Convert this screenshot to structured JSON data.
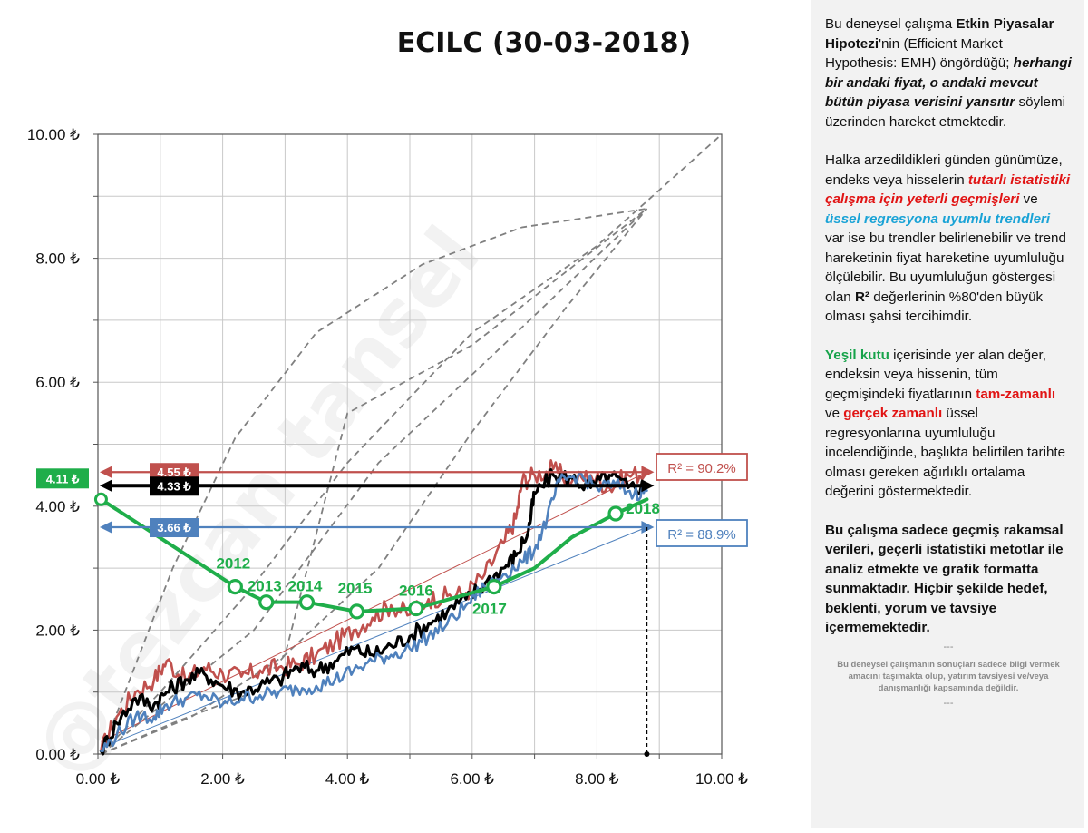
{
  "title": "ECILC (30-03-2018)",
  "chart_data": {
    "type": "line",
    "xlim": [
      0,
      10
    ],
    "ylim": [
      0,
      10
    ],
    "x_tick_labels": [
      "0.00 ₺",
      "2.00 ₺",
      "4.00 ₺",
      "6.00 ₺",
      "8.00 ₺",
      "10.00 ₺"
    ],
    "y_tick_labels": [
      "0.00 ₺",
      "2.00 ₺",
      "4.00 ₺",
      "6.00 ₺",
      "8.00 ₺",
      "10.00 ₺"
    ],
    "grid": true,
    "colors": {
      "red": "#c0504d",
      "blue": "#4f81bd",
      "black": "#000000",
      "green": "#1fae4a",
      "dashed": "#808080"
    },
    "series": [
      {
        "color": "red",
        "points": [
          [
            0.05,
            0.05
          ],
          [
            0.3,
            0.6
          ],
          [
            0.6,
            1.0
          ],
          [
            0.9,
            1.2
          ],
          [
            1.1,
            1.5
          ],
          [
            1.4,
            1.2
          ],
          [
            1.7,
            1.4
          ],
          [
            2.0,
            1.3
          ],
          [
            2.3,
            1.25
          ],
          [
            2.6,
            1.35
          ],
          [
            2.9,
            1.4
          ],
          [
            3.2,
            1.45
          ],
          [
            3.5,
            1.6
          ],
          [
            3.8,
            1.8
          ],
          [
            4.1,
            2.0
          ],
          [
            4.4,
            2.2
          ],
          [
            4.7,
            2.4
          ],
          [
            5.0,
            2.25
          ],
          [
            5.3,
            2.5
          ],
          [
            5.6,
            2.55
          ],
          [
            5.9,
            2.6
          ],
          [
            6.2,
            2.9
          ],
          [
            6.5,
            3.4
          ],
          [
            6.7,
            3.8
          ],
          [
            6.8,
            4.4
          ],
          [
            7.0,
            4.5
          ],
          [
            7.3,
            4.6
          ],
          [
            7.6,
            4.4
          ],
          [
            7.9,
            4.5
          ],
          [
            8.2,
            4.3
          ],
          [
            8.5,
            4.5
          ],
          [
            8.8,
            4.55
          ]
        ]
      },
      {
        "color": "black",
        "points": [
          [
            0.05,
            0.05
          ],
          [
            0.3,
            0.5
          ],
          [
            0.6,
            0.9
          ],
          [
            0.9,
            0.8
          ],
          [
            1.1,
            1.0
          ],
          [
            1.4,
            1.2
          ],
          [
            1.7,
            1.3
          ],
          [
            2.0,
            1.1
          ],
          [
            2.3,
            1.0
          ],
          [
            2.6,
            1.1
          ],
          [
            2.9,
            1.2
          ],
          [
            3.2,
            1.4
          ],
          [
            3.5,
            1.35
          ],
          [
            3.8,
            1.5
          ],
          [
            4.1,
            1.7
          ],
          [
            4.4,
            1.6
          ],
          [
            4.7,
            1.75
          ],
          [
            5.0,
            1.9
          ],
          [
            5.3,
            2.1
          ],
          [
            5.6,
            2.3
          ],
          [
            5.9,
            2.5
          ],
          [
            6.2,
            2.75
          ],
          [
            6.5,
            3.0
          ],
          [
            6.7,
            3.2
          ],
          [
            6.9,
            3.6
          ],
          [
            7.0,
            4.2
          ],
          [
            7.3,
            4.5
          ],
          [
            7.6,
            4.45
          ],
          [
            7.9,
            4.3
          ],
          [
            8.2,
            4.5
          ],
          [
            8.5,
            4.3
          ],
          [
            8.8,
            4.33
          ]
        ]
      },
      {
        "color": "blue",
        "points": [
          [
            0.05,
            0.05
          ],
          [
            0.3,
            0.3
          ],
          [
            0.6,
            0.6
          ],
          [
            0.9,
            0.6
          ],
          [
            1.1,
            0.8
          ],
          [
            1.4,
            0.9
          ],
          [
            1.7,
            0.95
          ],
          [
            2.0,
            0.8
          ],
          [
            2.3,
            0.9
          ],
          [
            2.6,
            0.95
          ],
          [
            2.9,
            1.0
          ],
          [
            3.2,
            1.05
          ],
          [
            3.5,
            1.1
          ],
          [
            3.8,
            1.2
          ],
          [
            4.1,
            1.35
          ],
          [
            4.4,
            1.5
          ],
          [
            4.7,
            1.6
          ],
          [
            5.0,
            1.7
          ],
          [
            5.3,
            1.9
          ],
          [
            5.6,
            2.1
          ],
          [
            5.9,
            2.4
          ],
          [
            6.2,
            2.7
          ],
          [
            6.5,
            2.9
          ],
          [
            6.8,
            3.1
          ],
          [
            7.0,
            3.3
          ],
          [
            7.2,
            3.8
          ],
          [
            7.4,
            4.4
          ],
          [
            7.7,
            4.5
          ],
          [
            8.0,
            4.3
          ],
          [
            8.3,
            4.35
          ],
          [
            8.6,
            4.2
          ],
          [
            8.8,
            4.25
          ]
        ]
      },
      {
        "color": "green",
        "points": [
          [
            0.05,
            4.11
          ],
          [
            2.2,
            2.7
          ],
          [
            2.7,
            2.45
          ],
          [
            3.35,
            2.45
          ],
          [
            4.15,
            2.3
          ],
          [
            5.1,
            2.35
          ],
          [
            6.35,
            2.7
          ],
          [
            7.0,
            3.0
          ],
          [
            7.6,
            3.5
          ],
          [
            8.3,
            3.88
          ],
          [
            8.8,
            4.11
          ]
        ]
      }
    ],
    "trend_lines": [
      {
        "color": "red",
        "from": [
          0.05,
          0.2
        ],
        "to": [
          8.8,
          4.55
        ]
      },
      {
        "color": "blue",
        "from": [
          0.05,
          0.1
        ],
        "to": [
          8.8,
          3.66
        ]
      }
    ],
    "dashed_lines": [
      {
        "points": [
          [
            0.05,
            0.0
          ],
          [
            1.2,
            3.0
          ],
          [
            2.2,
            5.1
          ],
          [
            3.5,
            6.8
          ],
          [
            5.2,
            7.9
          ],
          [
            6.8,
            8.5
          ],
          [
            8.8,
            8.8
          ]
        ]
      },
      {
        "points": [
          [
            0.05,
            0.0
          ],
          [
            1.0,
            1.0
          ],
          [
            2.4,
            2.6
          ],
          [
            4.0,
            4.7
          ],
          [
            6.0,
            6.8
          ],
          [
            8.0,
            8.2
          ],
          [
            10.0,
            10.0
          ]
        ]
      },
      {
        "points": [
          [
            0.05,
            0.0
          ],
          [
            2.5,
            2.0
          ],
          [
            4.5,
            4.7
          ],
          [
            6.5,
            6.6
          ],
          [
            8.8,
            8.8
          ]
        ]
      },
      {
        "points": [
          [
            0.05,
            0.0
          ],
          [
            1.5,
            0.6
          ],
          [
            3.0,
            1.6
          ],
          [
            4.5,
            3.0
          ],
          [
            6.0,
            5.2
          ],
          [
            7.5,
            7.2
          ],
          [
            8.8,
            8.8
          ]
        ]
      },
      {
        "points": [
          [
            0.05,
            0.0
          ],
          [
            1.2,
            0.5
          ],
          [
            2.5,
            1.0
          ],
          [
            3.0,
            1.6
          ],
          [
            4.0,
            5.5
          ],
          [
            6.0,
            6.6
          ],
          [
            8.8,
            8.8
          ]
        ]
      }
    ],
    "reference_lines": [
      {
        "color": "red",
        "y": 4.55,
        "label": "4.55 ₺"
      },
      {
        "color": "black",
        "y": 4.33,
        "label": "4.33 ₺"
      },
      {
        "color": "blue",
        "y": 3.66,
        "label": "3.66 ₺"
      }
    ],
    "current_value": {
      "color": "green",
      "y": 4.11,
      "label": "4.11 ₺"
    },
    "r2_labels": [
      {
        "color": "red",
        "text": "R² = 90.2%"
      },
      {
        "color": "blue",
        "text": "R² = 88.9%"
      }
    ],
    "year_markers": [
      {
        "label": "2012",
        "x": 2.2,
        "y": 2.7
      },
      {
        "label": "2013",
        "x": 2.7,
        "y": 2.45
      },
      {
        "label": "2014",
        "x": 3.35,
        "y": 2.45
      },
      {
        "label": "2015",
        "x": 4.15,
        "y": 2.3
      },
      {
        "label": "2016",
        "x": 5.1,
        "y": 2.35
      },
      {
        "label": "2017",
        "x": 6.35,
        "y": 2.7
      },
      {
        "label": "2018",
        "x": 8.3,
        "y": 3.88
      }
    ],
    "watermark": "@tezcan tansel",
    "end_marker_x": 8.8
  },
  "side_panel": {
    "p1": [
      "Bu deneysel çalışma ",
      "Etkin Piyasalar Hipotezi",
      "'nin (Efficient Market Hypothesis: EMH) öngördüğü; ",
      "herhangi bir andaki fiyat, o andaki mevcut bütün piyasa verisini yansıtır",
      "  söylemi üzerinden hareket etmektedir."
    ],
    "p2": [
      "Halka arzedildikleri günden günümüze, endeks veya hisselerin ",
      "tutarlı istatistiki çalışma için yeterli geçmişleri",
      " ve ",
      "üssel regresyona uyumlu trendleri",
      " var ise bu trendler belirlenebilir ve trend hareketinin fiyat hareketine uyumluluğu ölçülebilir. Bu uyumluluğun göstergesi olan ",
      "R²",
      " değerlerinin %80'den büyük olması şahsi tercihimdir."
    ],
    "p3": [
      "Yeşil kutu",
      " içerisinde yer alan değer, endeksin veya hissenin, tüm geçmişindeki fiyatlarının ",
      "tam-zamanlı",
      " ve ",
      "gerçek zamanlı",
      " üssel regresyonlarına uyumluluğu incelendiğinde, başlıkta belirtilen tarihte olması gereken ağırlıklı ortalama değerini göstermektedir."
    ],
    "p4": "Bu çalışma sadece geçmiş rakamsal verileri, geçerli istatistiki metotlar ile  analiz etmekte ve grafik formatta sunmaktadır. Hiçbir şekilde hedef, beklenti, yorum ve tavsiye içermemektedir.",
    "separator": "---",
    "disclaimer": "Bu deneysel çalışmanın sonuçları sadece bilgi vermek amacını taşımakta olup, yatırım tavsiyesi ve/veya danışmanlığı kapsamında değildir."
  }
}
